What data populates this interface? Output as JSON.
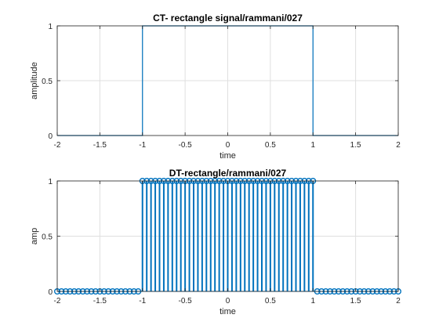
{
  "chart_data": [
    {
      "type": "line",
      "title": "CT- rectangle signal/rammani/027",
      "xlabel": "time",
      "ylabel": "amplitude",
      "xlim": [
        -2,
        2
      ],
      "ylim": [
        0,
        1
      ],
      "grid": true,
      "x_ticks": [
        "-2",
        "-1.5",
        "-1",
        "-0.5",
        "0",
        "0.5",
        "1",
        "1.5",
        "2"
      ],
      "y_ticks": [
        "0",
        "0.5",
        "1"
      ],
      "color": "#0072BD",
      "series": [
        {
          "x": [
            -2,
            -1,
            -1,
            1,
            1,
            2
          ],
          "y": [
            0,
            0,
            1,
            1,
            0,
            0
          ]
        }
      ]
    },
    {
      "type": "stem",
      "title": "DT-rectangle/rammani/027",
      "xlabel": "time",
      "ylabel": "amp",
      "xlim": [
        -2,
        2
      ],
      "ylim": [
        0,
        1
      ],
      "grid": true,
      "x_ticks": [
        "-2",
        "-1.5",
        "-1",
        "-0.5",
        "0",
        "0.5",
        "1",
        "1.5",
        "2"
      ],
      "y_ticks": [
        "0",
        "0.5",
        "1"
      ],
      "color": "#0072BD",
      "sample_step": 0.05,
      "series": [
        {
          "x_range": [
            -2,
            2
          ],
          "value_inside": 1,
          "value_outside": 0,
          "pulse_range": [
            -1,
            1
          ]
        }
      ]
    }
  ]
}
